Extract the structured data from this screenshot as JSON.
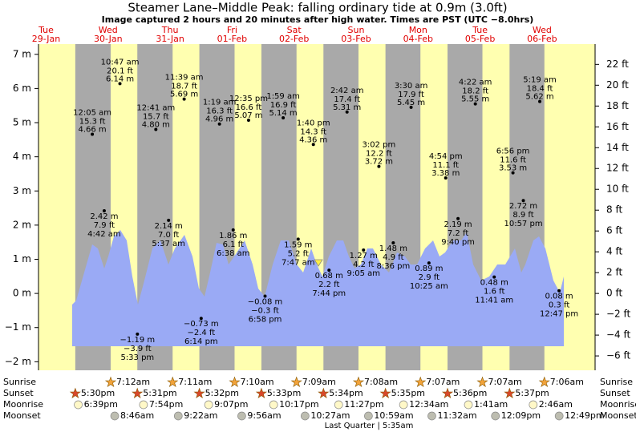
{
  "chart_data": {
    "type": "tide",
    "title": "Steamer Lane–Middle Peak: falling  ordinary tide at 0.9m (3.0ft)",
    "subtitle": "Image captured 2 hours and 20 minutes after high water. Times are PST (UTC −8.0hrs)",
    "ylim": [
      -2.25,
      7.3
    ],
    "yticks": [
      {
        "value": 7,
        "label": "7 m"
      },
      {
        "value": 6,
        "label": "6 m"
      },
      {
        "value": 5,
        "label": "5 m"
      },
      {
        "value": 4,
        "label": "4 m"
      },
      {
        "value": 3,
        "label": "3 m"
      },
      {
        "value": 2,
        "label": "2 m"
      },
      {
        "value": 1,
        "label": "1 m"
      },
      {
        "value": 0,
        "label": "0 m"
      },
      {
        "value": -1,
        "label": "−1 m"
      },
      {
        "value": -2,
        "label": "−2 m"
      }
    ],
    "y2lim": [
      -7.38,
      23.95
    ],
    "y2ticks": [
      {
        "value": 22,
        "label": "22 ft"
      },
      {
        "value": 20,
        "label": "20 ft"
      },
      {
        "value": 18,
        "label": "18 ft"
      },
      {
        "value": 16,
        "label": "16 ft"
      },
      {
        "value": 14,
        "label": "14 ft"
      },
      {
        "value": 12,
        "label": "12 ft"
      },
      {
        "value": 10,
        "label": "10 ft"
      },
      {
        "value": 8,
        "label": "8 ft"
      },
      {
        "value": 6,
        "label": "6 ft"
      },
      {
        "value": 4,
        "label": "4 ft"
      },
      {
        "value": 2,
        "label": "2 ft"
      },
      {
        "value": 0,
        "label": "0 ft"
      },
      {
        "value": -2,
        "label": "−2 ft"
      },
      {
        "value": -4,
        "label": "−4 ft"
      },
      {
        "value": -6,
        "label": "−6 ft"
      }
    ],
    "row_labels": [
      "Sunrise",
      "Sunset",
      "Moonrise",
      "Moonset"
    ],
    "moon_phase": "Last Quarter | 5:35am",
    "days": [
      {
        "dow": "Tue",
        "date": "29-Jan",
        "sunset": "5:30pm",
        "moonrise": "6:39pm",
        "tides": []
      },
      {
        "dow": "Wed",
        "date": "30-Jan",
        "sunrise": "7:12am",
        "sunset": "5:31pm",
        "moonrise": "7:54pm",
        "moonset": "8:46am",
        "tides": [
          {
            "time": "12:05 am",
            "ft": "15.3 ft",
            "value": 4.66,
            "label": "4.66 m"
          },
          {
            "time": "4:42 am",
            "ft": "7.9 ft",
            "value": 2.42,
            "label": "2.42 m"
          },
          {
            "time": "10:47 am",
            "ft": "20.1 ft",
            "value": 6.14,
            "label": "6.14 m"
          },
          {
            "time": "5:33 pm",
            "ft": "−3.9 ft",
            "value": -1.19,
            "label": "−1.19 m"
          }
        ]
      },
      {
        "dow": "Thu",
        "date": "31-Jan",
        "sunrise": "7:11am",
        "sunset": "5:32pm",
        "moonrise": "9:07pm",
        "moonset": "9:22am",
        "tides": [
          {
            "time": "12:41 am",
            "ft": "15.7 ft",
            "value": 4.8,
            "label": "4.80 m"
          },
          {
            "time": "5:37 am",
            "ft": "7.0 ft",
            "value": 2.14,
            "label": "2.14 m"
          },
          {
            "time": "11:39 am",
            "ft": "18.7 ft",
            "value": 5.69,
            "label": "5.69 m"
          },
          {
            "time": "6:14 pm",
            "ft": "−2.4 ft",
            "value": -0.73,
            "label": "−0.73 m"
          }
        ]
      },
      {
        "dow": "Fri",
        "date": "01-Feb",
        "sunrise": "7:10am",
        "sunset": "5:33pm",
        "moonrise": "10:17pm",
        "moonset": "9:56am",
        "tides": [
          {
            "time": "1:19 am",
            "ft": "16.3 ft",
            "value": 4.96,
            "label": "4.96 m"
          },
          {
            "time": "6:38 am",
            "ft": "6.1 ft",
            "value": 1.86,
            "label": "1.86 m"
          },
          {
            "time": "12:35 pm",
            "ft": "16.6 ft",
            "value": 5.07,
            "label": "5.07 m"
          },
          {
            "time": "6:58 pm",
            "ft": "−0.3 ft",
            "value": -0.08,
            "label": "−0.08 m"
          }
        ]
      },
      {
        "dow": "Sat",
        "date": "02-Feb",
        "sunrise": "7:09am",
        "sunset": "5:34pm",
        "moonrise": "11:27pm",
        "moonset": "10:27am",
        "tides": [
          {
            "time": "1:59 am",
            "ft": "16.9 ft",
            "value": 5.14,
            "label": "5.14 m"
          },
          {
            "time": "7:47 am",
            "ft": "5.2 ft",
            "value": 1.59,
            "label": "1.59 m"
          },
          {
            "time": "1:40 pm",
            "ft": "14.3 ft",
            "value": 4.36,
            "label": "4.36 m"
          },
          {
            "time": "7:44 pm",
            "ft": "2.2 ft",
            "value": 0.68,
            "label": "0.68 m"
          }
        ]
      },
      {
        "dow": "Sun",
        "date": "03-Feb",
        "sunrise": "7:08am",
        "sunset": "5:35pm",
        "moonset": "10:59am",
        "tides": [
          {
            "time": "2:42 am",
            "ft": "17.4 ft",
            "value": 5.31,
            "label": "5.31 m"
          },
          {
            "time": "9:05 am",
            "ft": "4.2 ft",
            "value": 1.27,
            "label": "1.27 m"
          },
          {
            "time": "3:02 pm",
            "ft": "12.2 ft",
            "value": 3.72,
            "label": "3.72 m"
          },
          {
            "time": "8:36 pm",
            "ft": "4.9 ft",
            "value": 1.48,
            "label": "1.48 m"
          }
        ]
      },
      {
        "dow": "Mon",
        "date": "04-Feb",
        "sunrise": "7:07am",
        "sunset": "5:36pm",
        "moonrise": "12:34am",
        "moonset": "11:32am",
        "tides": [
          {
            "time": "3:30 am",
            "ft": "17.9 ft",
            "value": 5.45,
            "label": "5.45 m"
          },
          {
            "time": "10:25 am",
            "ft": "2.9 ft",
            "value": 0.89,
            "label": "0.89 m"
          },
          {
            "time": "4:54 pm",
            "ft": "11.1 ft",
            "value": 3.38,
            "label": "3.38 m"
          },
          {
            "time": "9:40 pm",
            "ft": "7.2 ft",
            "value": 2.19,
            "label": "2.19 m"
          }
        ]
      },
      {
        "dow": "Tue",
        "date": "05-Feb",
        "sunrise": "7:07am",
        "sunset": "5:37pm",
        "moonrise": "1:41am",
        "moonset": "12:09pm",
        "tides": [
          {
            "time": "4:22 am",
            "ft": "18.2 ft",
            "value": 5.55,
            "label": "5.55 m"
          },
          {
            "time": "11:41 am",
            "ft": "1.6 ft",
            "value": 0.48,
            "label": "0.48 m"
          },
          {
            "time": "6:56 pm",
            "ft": "11.6 ft",
            "value": 3.53,
            "label": "3.53 m"
          },
          {
            "time": "10:57 pm",
            "ft": "8.9 ft",
            "value": 2.72,
            "label": "2.72 m"
          }
        ]
      },
      {
        "dow": "Wed",
        "date": "06-Feb",
        "sunrise": "7:06am",
        "moonrise": "2:46am",
        "moonset": "12:49pm",
        "tides": [
          {
            "time": "5:19 am",
            "ft": "18.4 ft",
            "value": 5.62,
            "label": "5.62 m"
          },
          {
            "time": "12:47 pm",
            "ft": "0.3 ft",
            "value": 0.08,
            "label": "0.08 m"
          }
        ]
      }
    ]
  }
}
